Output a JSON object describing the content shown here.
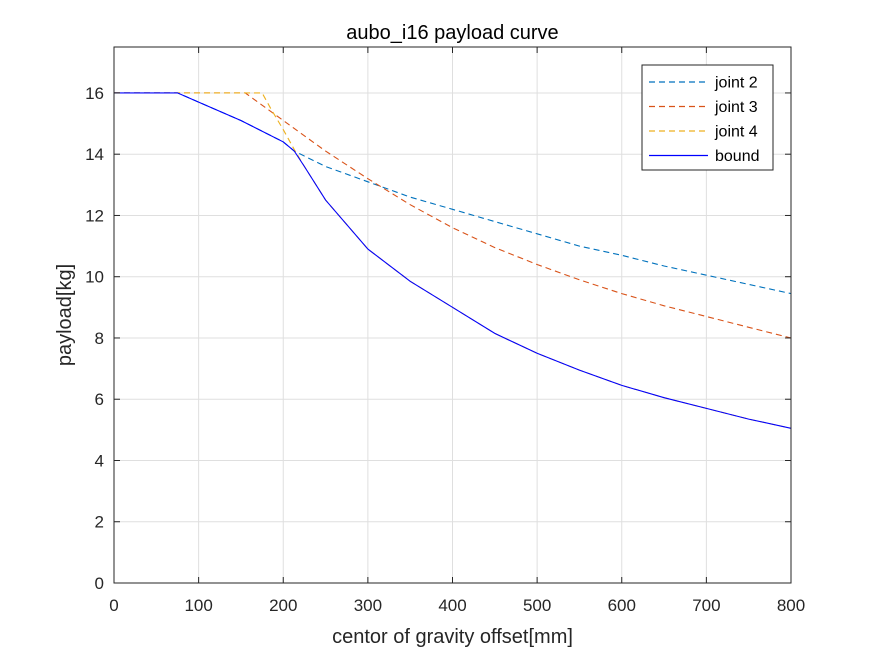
{
  "chart_data": {
    "type": "line",
    "title": "aubo_i16 payload curve",
    "xlabel": "centor of gravity offset[mm]",
    "ylabel": "payload[kg]",
    "xlim": [
      0,
      800
    ],
    "ylim": [
      0,
      17.5
    ],
    "xticks": [
      0,
      100,
      200,
      300,
      400,
      500,
      600,
      700,
      800
    ],
    "yticks": [
      0,
      2,
      4,
      6,
      8,
      10,
      12,
      14,
      16
    ],
    "grid": true,
    "legend_position": "top-right",
    "series": [
      {
        "name": "joint 2",
        "color": "#0072BD",
        "style": "dashed",
        "x": [
          0,
          75,
          100,
          150,
          200,
          213,
          250,
          300,
          350,
          400,
          450,
          500,
          550,
          600,
          650,
          700,
          750,
          800
        ],
        "y": [
          16,
          16,
          15.7,
          15.1,
          14.4,
          14.1,
          13.6,
          13.1,
          12.6,
          12.2,
          11.8,
          11.4,
          11.0,
          10.7,
          10.35,
          10.05,
          9.75,
          9.45
        ]
      },
      {
        "name": "joint 3",
        "color": "#D95319",
        "style": "dashed",
        "x": [
          0,
          155,
          175,
          200,
          225,
          250,
          300,
          350,
          400,
          450,
          500,
          550,
          600,
          650,
          700,
          750,
          800
        ],
        "y": [
          16,
          16,
          15.6,
          15.1,
          14.6,
          14.1,
          13.2,
          12.35,
          11.6,
          10.95,
          10.4,
          9.9,
          9.45,
          9.05,
          8.7,
          8.35,
          8.0
        ]
      },
      {
        "name": "joint 4",
        "color": "#EDB120",
        "style": "dashed",
        "x": [
          0,
          175,
          185,
          200,
          213,
          225,
          250,
          300,
          350,
          400,
          450,
          500,
          550,
          600,
          650,
          700,
          750,
          800
        ],
        "y": [
          16,
          16,
          15.5,
          14.8,
          14.15,
          13.6,
          12.5,
          10.9,
          9.85,
          9.0,
          8.15,
          7.5,
          6.95,
          6.45,
          6.05,
          5.7,
          5.35,
          5.05
        ]
      },
      {
        "name": "bound",
        "color": "#0000FF",
        "style": "solid",
        "x": [
          0,
          75,
          100,
          150,
          200,
          213,
          225,
          250,
          300,
          350,
          400,
          450,
          500,
          550,
          600,
          650,
          700,
          750,
          800
        ],
        "y": [
          16,
          16,
          15.7,
          15.1,
          14.4,
          14.1,
          13.6,
          12.5,
          10.9,
          9.85,
          9.0,
          8.15,
          7.5,
          6.95,
          6.45,
          6.05,
          5.7,
          5.35,
          5.05
        ]
      }
    ]
  }
}
